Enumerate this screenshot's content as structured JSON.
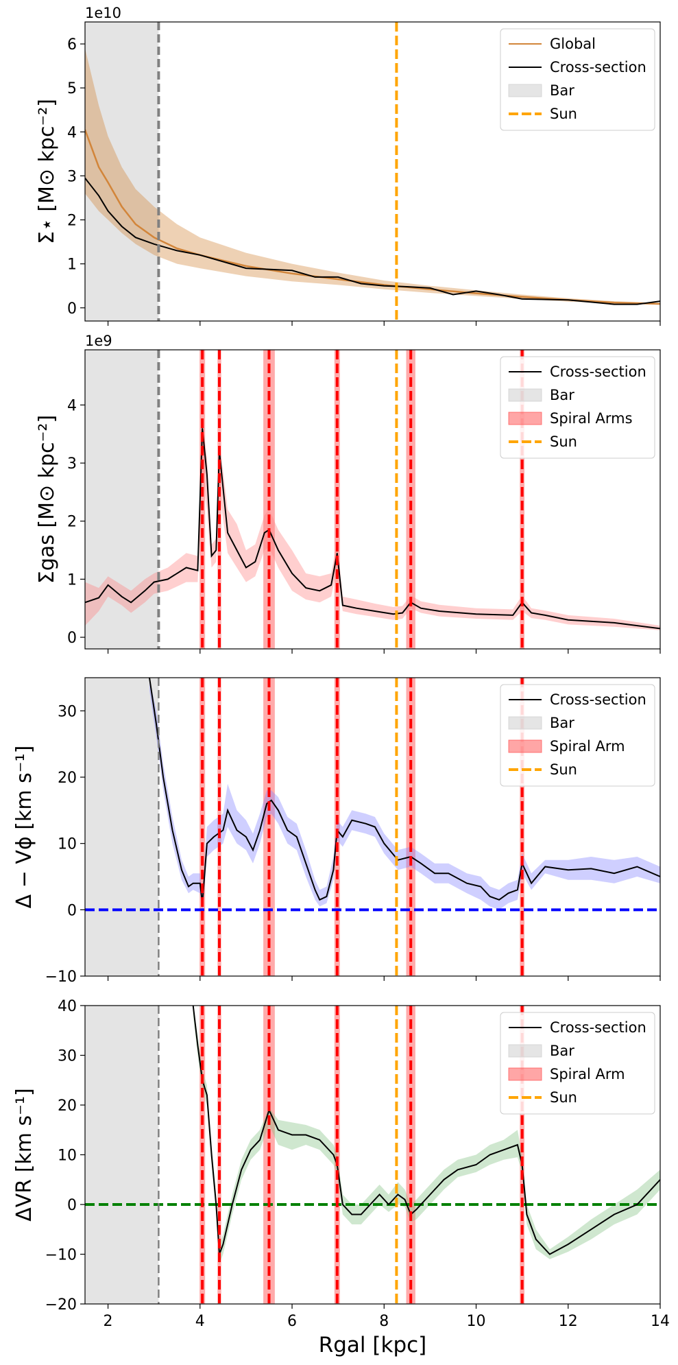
{
  "chart_data": [
    {
      "type": "line",
      "panel": "stellar-surface-density",
      "ylabel": "Σ⋆ [M⊙ kpc⁻²]",
      "offset_label": "1e10",
      "xlim": [
        1.5,
        14
      ],
      "ylim": [
        -0.3,
        6.5
      ],
      "yticks": [
        0,
        1,
        2,
        3,
        4,
        5,
        6
      ],
      "xticks": [
        2,
        4,
        6,
        8,
        10,
        12,
        14
      ],
      "bar_region": [
        1.5,
        3.1
      ],
      "bar_edge": 3.1,
      "sun": 8.27,
      "spiral_arms": [],
      "reference_line": null,
      "legend": {
        "position": "top-right",
        "entries": [
          {
            "label": "Global",
            "kind": "line",
            "color": "#d2853a"
          },
          {
            "label": "Cross-section",
            "kind": "line",
            "color": "#000000"
          },
          {
            "label": "Bar",
            "kind": "patch",
            "color": "#cccccc"
          },
          {
            "label": "Sun",
            "kind": "dashed",
            "color": "#ffa500"
          }
        ]
      },
      "series": [
        {
          "name": "Global",
          "color": "#d2853a",
          "x": [
            1.5,
            1.8,
            2.0,
            2.3,
            2.6,
            3.0,
            3.5,
            4.0,
            5.0,
            6.0,
            7.0,
            8.0,
            9.0,
            10.0,
            11.0,
            12.0,
            13.0,
            14.0
          ],
          "y": [
            4.05,
            3.2,
            2.85,
            2.3,
            1.9,
            1.6,
            1.35,
            1.2,
            0.95,
            0.78,
            0.65,
            0.52,
            0.42,
            0.33,
            0.25,
            0.18,
            0.12,
            0.09
          ],
          "band_lower": [
            2.6,
            2.2,
            2.0,
            1.7,
            1.45,
            1.2,
            1.0,
            0.9,
            0.72,
            0.6,
            0.52,
            0.42,
            0.34,
            0.27,
            0.2,
            0.14,
            0.1,
            0.07
          ],
          "band_upper": [
            5.9,
            4.6,
            3.9,
            3.2,
            2.7,
            2.3,
            1.9,
            1.6,
            1.25,
            1.0,
            0.8,
            0.62,
            0.5,
            0.4,
            0.3,
            0.22,
            0.15,
            0.11
          ]
        },
        {
          "name": "Cross-section",
          "color": "#000000",
          "x": [
            1.5,
            1.8,
            2.0,
            2.3,
            2.6,
            3.0,
            3.5,
            4.0,
            5.0,
            6.0,
            6.5,
            7.0,
            7.5,
            8.0,
            8.5,
            9.0,
            9.5,
            10.0,
            10.5,
            11.0,
            12.0,
            13.0,
            13.5,
            14.0
          ],
          "y": [
            2.95,
            2.55,
            2.2,
            1.85,
            1.6,
            1.45,
            1.3,
            1.2,
            0.9,
            0.85,
            0.7,
            0.7,
            0.55,
            0.5,
            0.48,
            0.45,
            0.3,
            0.38,
            0.3,
            0.2,
            0.18,
            0.08,
            0.08,
            0.15
          ]
        }
      ]
    },
    {
      "type": "line",
      "panel": "gas-surface-density",
      "ylabel": "Σgas [M⊙ kpc⁻²]",
      "offset_label": "1e9",
      "xlim": [
        1.5,
        14
      ],
      "ylim": [
        -0.2,
        4.95
      ],
      "yticks": [
        0,
        1,
        2,
        3,
        4
      ],
      "xticks": [
        2,
        4,
        6,
        8,
        10,
        12,
        14
      ],
      "bar_region": [
        1.5,
        3.1
      ],
      "bar_edge": 3.1,
      "sun": 8.27,
      "spiral_arms": [
        {
          "center": 4.05,
          "width": 0.12
        },
        {
          "center": 4.42,
          "width": 0.08
        },
        {
          "center": 5.5,
          "width": 0.25
        },
        {
          "center": 6.98,
          "width": 0.12
        },
        {
          "center": 8.58,
          "width": 0.2
        },
        {
          "center": 11.0,
          "width": 0.1
        }
      ],
      "reference_line": null,
      "legend": {
        "position": "top-right",
        "entries": [
          {
            "label": "Cross-section",
            "kind": "line",
            "color": "#000000"
          },
          {
            "label": "Bar",
            "kind": "patch",
            "color": "#cccccc"
          },
          {
            "label": "Spiral Arms",
            "kind": "patch",
            "color": "#ff4d4d"
          },
          {
            "label": "Sun",
            "kind": "dashed",
            "color": "#ffa500"
          }
        ]
      },
      "series": [
        {
          "name": "Cross-section",
          "color": "#000000",
          "band_color": "#ff8080",
          "x": [
            1.5,
            1.8,
            2.0,
            2.3,
            2.5,
            2.8,
            3.0,
            3.3,
            3.7,
            3.95,
            4.05,
            4.15,
            4.25,
            4.35,
            4.42,
            4.6,
            4.8,
            5.0,
            5.2,
            5.4,
            5.5,
            5.7,
            6.0,
            6.3,
            6.6,
            6.85,
            6.98,
            7.1,
            7.4,
            7.8,
            8.2,
            8.4,
            8.58,
            8.8,
            9.2,
            10.0,
            10.8,
            11.0,
            11.2,
            11.5,
            12.0,
            13.0,
            14.0
          ],
          "y": [
            0.6,
            0.68,
            0.9,
            0.7,
            0.6,
            0.8,
            0.95,
            1.0,
            1.2,
            1.15,
            3.6,
            2.8,
            1.4,
            1.5,
            3.2,
            1.8,
            1.5,
            1.2,
            1.3,
            1.8,
            1.85,
            1.5,
            1.1,
            0.85,
            0.8,
            0.9,
            1.45,
            0.55,
            0.5,
            0.45,
            0.4,
            0.42,
            0.6,
            0.5,
            0.45,
            0.4,
            0.38,
            0.6,
            0.42,
            0.38,
            0.3,
            0.25,
            0.15
          ],
          "band_lower": [
            0.2,
            0.45,
            0.7,
            0.55,
            0.42,
            0.6,
            0.75,
            0.8,
            0.95,
            0.95,
            2.8,
            2.2,
            1.2,
            1.3,
            2.5,
            1.45,
            1.2,
            0.95,
            1.05,
            1.5,
            1.55,
            1.2,
            0.8,
            0.65,
            0.6,
            0.7,
            1.2,
            0.45,
            0.4,
            0.35,
            0.3,
            0.32,
            0.5,
            0.42,
            0.36,
            0.32,
            0.3,
            0.45,
            0.33,
            0.3,
            0.22,
            0.18,
            0.12
          ],
          "band_upper": [
            0.95,
            0.85,
            1.05,
            0.9,
            0.8,
            1.0,
            1.1,
            1.2,
            1.45,
            1.4,
            3.7,
            3.1,
            1.6,
            1.7,
            3.4,
            2.2,
            1.95,
            1.5,
            1.6,
            2.1,
            2.2,
            1.85,
            1.5,
            1.1,
            1.05,
            1.1,
            1.65,
            0.7,
            0.65,
            0.58,
            0.52,
            0.54,
            0.72,
            0.62,
            0.56,
            0.5,
            0.48,
            0.72,
            0.5,
            0.46,
            0.38,
            0.32,
            0.2
          ]
        }
      ]
    },
    {
      "type": "line",
      "panel": "azimuthal-velocity-residual",
      "ylabel": "Δ − Vϕ [km s⁻¹]",
      "offset_label": "",
      "xlim": [
        1.5,
        14
      ],
      "ylim": [
        -10,
        35
      ],
      "yticks": [
        -10,
        0,
        10,
        20,
        30
      ],
      "xticks": [
        2,
        4,
        6,
        8,
        10,
        12,
        14
      ],
      "bar_region": [
        1.5,
        3.1
      ],
      "bar_edge": 3.1,
      "sun": 8.27,
      "spiral_arms": [
        {
          "center": 4.05,
          "width": 0.12
        },
        {
          "center": 4.42,
          "width": 0.08
        },
        {
          "center": 5.5,
          "width": 0.25
        },
        {
          "center": 6.98,
          "width": 0.12
        },
        {
          "center": 8.58,
          "width": 0.2
        },
        {
          "center": 11.0,
          "width": 0.1
        }
      ],
      "reference_line": {
        "y": 0,
        "color": "#0000ff"
      },
      "legend": {
        "position": "top-right",
        "entries": [
          {
            "label": "Cross-section",
            "kind": "line",
            "color": "#000000"
          },
          {
            "label": "Bar",
            "kind": "patch",
            "color": "#cccccc"
          },
          {
            "label": "Spiral Arm",
            "kind": "patch",
            "color": "#ff4d4d"
          },
          {
            "label": "Sun",
            "kind": "dashed",
            "color": "#ffa500"
          }
        ]
      },
      "series": [
        {
          "name": "Cross-section",
          "color": "#000000",
          "band_color": "#8080ff",
          "x": [
            2.9,
            3.05,
            3.2,
            3.4,
            3.6,
            3.75,
            3.85,
            4.0,
            4.05,
            4.15,
            4.3,
            4.5,
            4.6,
            4.8,
            5.0,
            5.15,
            5.3,
            5.45,
            5.55,
            5.7,
            5.9,
            6.1,
            6.3,
            6.5,
            6.6,
            6.75,
            6.9,
            6.98,
            7.1,
            7.3,
            7.6,
            7.8,
            8.0,
            8.3,
            8.58,
            8.8,
            9.1,
            9.4,
            9.8,
            10.1,
            10.3,
            10.5,
            10.7,
            10.9,
            11.0,
            11.2,
            11.5,
            12.0,
            12.5,
            13.0,
            13.5,
            14.0
          ],
          "y": [
            35,
            28,
            20,
            12,
            6,
            3.5,
            4,
            4,
            1,
            10,
            11,
            12,
            15,
            12,
            11,
            9,
            12,
            16,
            16.5,
            15,
            12,
            11,
            7,
            3,
            1.5,
            2,
            6,
            12,
            11,
            13.5,
            13,
            12.5,
            10,
            7.5,
            8,
            7,
            5.5,
            5.5,
            4,
            3.5,
            2,
            1.5,
            2.5,
            3,
            7,
            4,
            6.5,
            6,
            6.2,
            5.5,
            6.5,
            5
          ],
          "band_lower": [
            33,
            26,
            18,
            10,
            4.5,
            2.5,
            3,
            2.5,
            -0.5,
            8,
            9,
            10,
            12.5,
            10,
            9,
            7,
            10,
            14,
            14.5,
            13,
            10,
            9,
            5,
            1.5,
            0.5,
            1,
            4.5,
            10.5,
            9.5,
            12,
            11.5,
            11,
            8.5,
            6,
            6.5,
            5.5,
            4,
            4,
            2.5,
            1.5,
            0.5,
            0,
            1,
            1.5,
            5.5,
            3,
            5.5,
            4.5,
            4.5,
            4,
            5,
            4
          ],
          "band_upper": [
            35,
            30,
            22,
            14,
            7.5,
            5,
            5.5,
            5.5,
            2.5,
            12.5,
            13.5,
            14.5,
            19,
            15,
            13.5,
            11.5,
            14.5,
            18,
            18,
            17,
            14,
            13,
            9,
            4.5,
            3,
            3.5,
            8,
            13.5,
            12.5,
            15,
            14.5,
            14,
            11.5,
            9,
            9.5,
            8.5,
            7,
            7,
            5.5,
            5,
            3.5,
            3,
            4,
            4.5,
            8.5,
            5.5,
            7.5,
            7.5,
            8,
            7.5,
            8,
            6.5
          ]
        }
      ]
    },
    {
      "type": "line",
      "panel": "radial-velocity-residual",
      "ylabel": "ΔVR [km s⁻¹]",
      "xlabel": "Rgal [kpc]",
      "offset_label": "",
      "xlim": [
        1.5,
        14
      ],
      "ylim": [
        -20,
        40
      ],
      "yticks": [
        -20,
        -10,
        0,
        10,
        20,
        30,
        40
      ],
      "xticks": [
        2,
        4,
        6,
        8,
        10,
        12,
        14
      ],
      "bar_region": [
        1.5,
        3.1
      ],
      "bar_edge": 3.1,
      "sun": 8.27,
      "spiral_arms": [
        {
          "center": 4.05,
          "width": 0.12
        },
        {
          "center": 4.42,
          "width": 0.08
        },
        {
          "center": 5.5,
          "width": 0.25
        },
        {
          "center": 6.98,
          "width": 0.12
        },
        {
          "center": 8.58,
          "width": 0.2
        },
        {
          "center": 11.0,
          "width": 0.1
        }
      ],
      "reference_line": {
        "y": 0,
        "color": "#008000"
      },
      "legend": {
        "position": "top-right",
        "entries": [
          {
            "label": "Cross-section",
            "kind": "line",
            "color": "#000000"
          },
          {
            "label": "Bar",
            "kind": "patch",
            "color": "#cccccc"
          },
          {
            "label": "Spiral Arm",
            "kind": "patch",
            "color": "#ff4d4d"
          },
          {
            "label": "Sun",
            "kind": "dashed",
            "color": "#ffa500"
          }
        ]
      },
      "series": [
        {
          "name": "Cross-section",
          "color": "#000000",
          "band_color": "#80c080",
          "x": [
            3.85,
            3.95,
            4.05,
            4.15,
            4.25,
            4.35,
            4.42,
            4.5,
            4.7,
            4.9,
            5.1,
            5.3,
            5.5,
            5.7,
            6.0,
            6.3,
            6.6,
            6.9,
            6.98,
            7.1,
            7.3,
            7.5,
            7.7,
            7.9,
            8.1,
            8.3,
            8.45,
            8.58,
            8.7,
            9.0,
            9.3,
            9.6,
            10.0,
            10.3,
            10.6,
            10.9,
            11.0,
            11.1,
            11.3,
            11.6,
            12.0,
            12.5,
            13.0,
            13.5,
            14.0
          ],
          "y": [
            40,
            32,
            25,
            22,
            10,
            0,
            -10,
            -8,
            0,
            7,
            11,
            13,
            19,
            15,
            14,
            14,
            13,
            10,
            8,
            0,
            -2,
            -2,
            0,
            2,
            0,
            2,
            1,
            -2,
            -1,
            2,
            5,
            7,
            8,
            10,
            11,
            12,
            8,
            -2,
            -7,
            -10,
            -8,
            -5,
            -2,
            0,
            5
          ],
          "band_lower": [
            38,
            30,
            23,
            20,
            8,
            -2,
            -12,
            -10,
            -2,
            5,
            9,
            11,
            16,
            12,
            11,
            12,
            11,
            8,
            6,
            -2,
            -4,
            -4,
            -2,
            0,
            -1.5,
            0,
            -0.5,
            -3.5,
            -3,
            0,
            3,
            5.5,
            6.5,
            8,
            9,
            9.5,
            6.5,
            -4,
            -9,
            -11,
            -9.5,
            -7,
            -4,
            -2,
            3
          ],
          "band_upper": [
            40,
            34,
            27,
            24,
            12,
            2,
            -8,
            -6,
            2,
            9,
            13,
            15,
            19.5,
            17,
            16.5,
            16,
            15,
            12,
            10,
            2,
            0,
            0,
            2,
            4,
            2,
            4.5,
            3,
            0,
            1,
            4,
            7,
            9,
            10,
            12,
            13,
            15,
            10,
            0,
            -5,
            -9,
            -6.5,
            -3,
            0,
            3,
            7
          ]
        }
      ]
    }
  ]
}
